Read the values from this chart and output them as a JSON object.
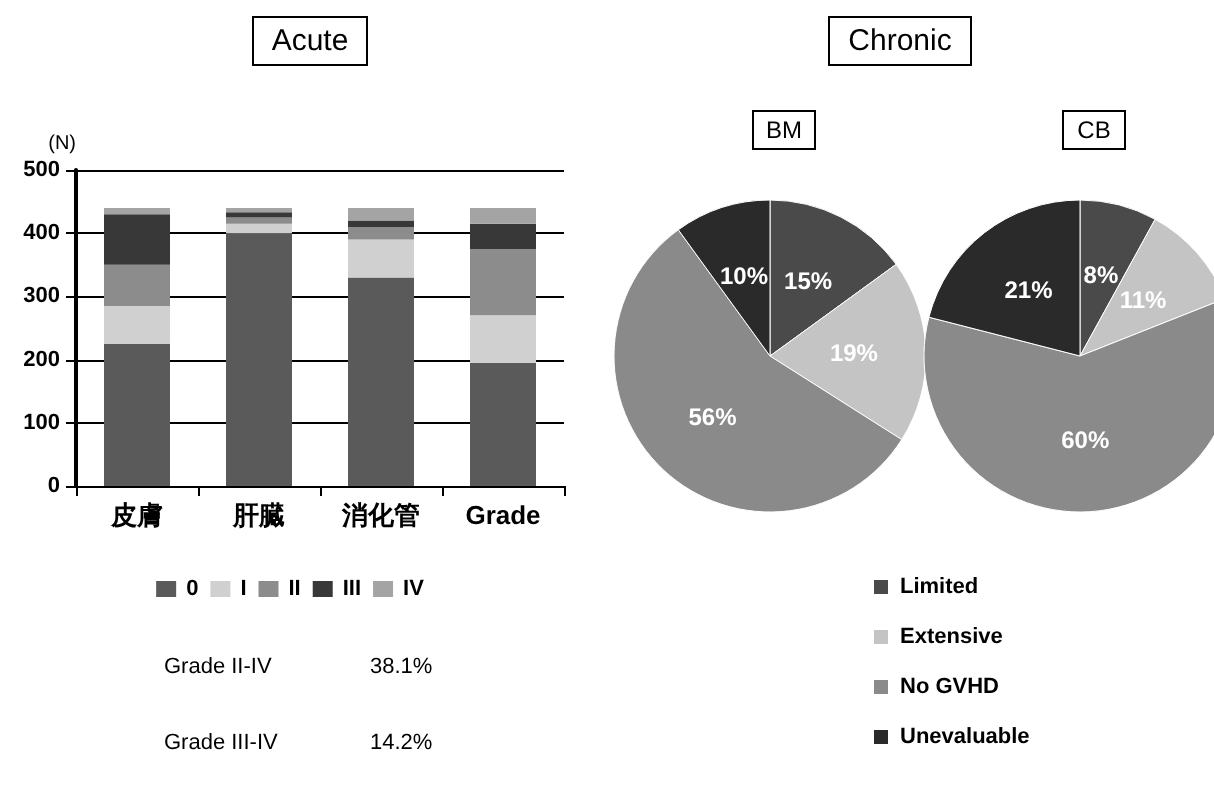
{
  "chart_data": [
    {
      "type": "bar",
      "title": "Acute",
      "ylabel": "(N)",
      "categories": [
        "皮膚",
        "肝臓",
        "消化管",
        "Grade"
      ],
      "stacked": true,
      "ylim": [
        0,
        500
      ],
      "yticks": [
        0,
        100,
        200,
        300,
        400,
        500
      ],
      "grid": "y",
      "legend": "bottom",
      "series": [
        {
          "name": "0",
          "color": "#5a5a5a",
          "values": [
            225,
            400,
            330,
            195
          ]
        },
        {
          "name": "I",
          "color": "#d0d0d0",
          "values": [
            60,
            15,
            60,
            75
          ]
        },
        {
          "name": "II",
          "color": "#8c8c8c",
          "values": [
            65,
            10,
            20,
            105
          ]
        },
        {
          "name": "III",
          "color": "#383838",
          "values": [
            80,
            8,
            10,
            40
          ]
        },
        {
          "name": "IV",
          "color": "#a4a4a4",
          "values": [
            10,
            7,
            20,
            25
          ]
        }
      ],
      "annotations": [
        "Grade II-IV",
        "38.1%",
        "Grade III-IV",
        "14.2%"
      ]
    },
    {
      "type": "pie",
      "title": "Chronic",
      "categories": [
        "Limited",
        "Extensive",
        "No GVHD",
        "Unevaluable"
      ],
      "colors": [
        "#4a4a4a",
        "#c4c4c4",
        "#8a8a8a",
        "#2a2a2a"
      ],
      "legend": "bottom",
      "series": [
        {
          "name": "BM",
          "values": [
            15,
            19,
            56,
            10
          ],
          "value_labels": [
            "15%",
            "19%",
            "56%",
            "10%"
          ]
        },
        {
          "name": "CB",
          "values": [
            8,
            11,
            60,
            21
          ],
          "value_labels": [
            "8%",
            "11%",
            "60%",
            "21%"
          ]
        }
      ]
    }
  ]
}
